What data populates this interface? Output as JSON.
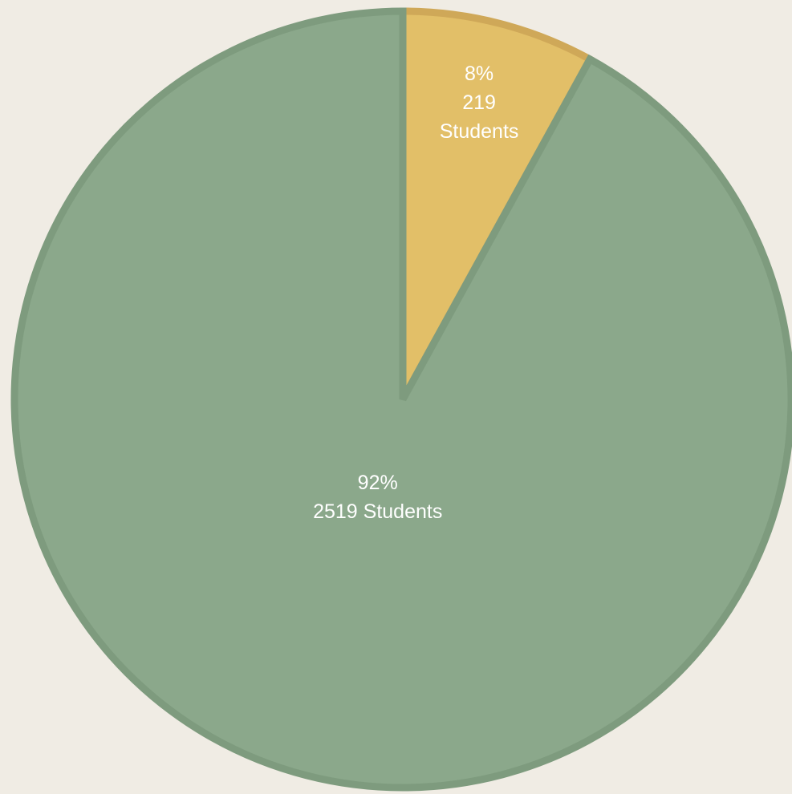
{
  "chart_data": {
    "type": "pie",
    "categories": [
      null,
      null
    ],
    "values": [
      219,
      2519
    ],
    "value_labels": [
      "219 Students",
      "2519 Students"
    ],
    "percent_labels": [
      "8%",
      "92%"
    ],
    "colors": [
      "#e2bf68",
      "#8ba88b"
    ],
    "start_angle": 0,
    "direction": "clockwise"
  }
}
